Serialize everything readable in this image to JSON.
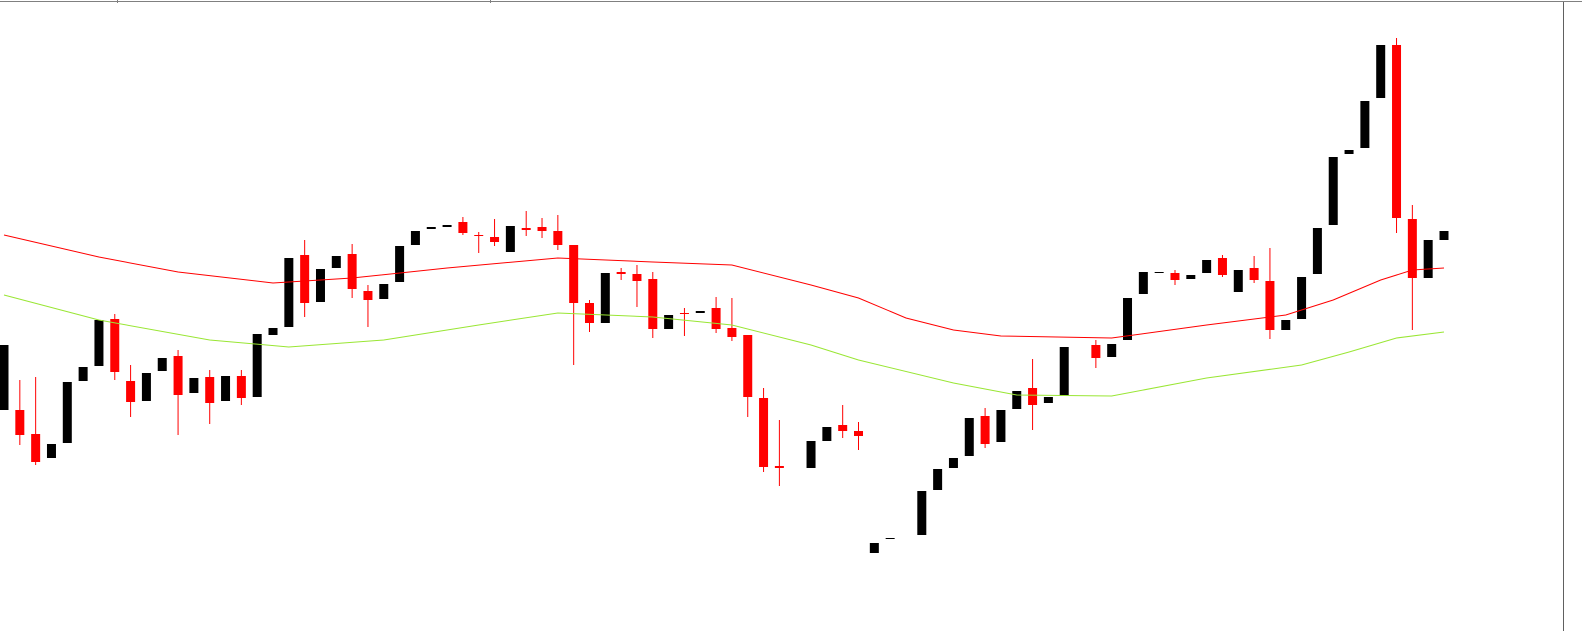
{
  "chart_data": {
    "type": "candlestick",
    "up_color": "#000000",
    "down_color": "#ff0000",
    "ylim": [
      0,
      631
    ],
    "categories": [
      null,
      null,
      null,
      null,
      null,
      null,
      null,
      null,
      null,
      null,
      null,
      null,
      null,
      null,
      null,
      null,
      null,
      null,
      null,
      null,
      null,
      null,
      null,
      null,
      null,
      null,
      null,
      null,
      null,
      null,
      null,
      null,
      null,
      null,
      null,
      null,
      null,
      null,
      null,
      null,
      null,
      null,
      null,
      null,
      null,
      null,
      null,
      null,
      null,
      null,
      null,
      null,
      null,
      null,
      null,
      null,
      null,
      null,
      null,
      null,
      null,
      null,
      null,
      null,
      null,
      null,
      null,
      null,
      null,
      null,
      null,
      null,
      null,
      null,
      null,
      null,
      null,
      null,
      null,
      null,
      null,
      null,
      null,
      null,
      null,
      null,
      null,
      null,
      null,
      null,
      null,
      null
    ],
    "open": [
      221,
      221,
      197,
      173,
      188,
      250,
      265,
      312,
      250,
      230,
      260,
      275,
      238,
      254,
      230,
      255,
      234,
      296,
      304,
      376,
      329,
      363,
      377,
      340,
      332,
      349,
      386,
      402,
      404,
      409,
      396,
      394,
      379,
      403,
      404,
      400,
      386,
      328,
      308,
      359,
      357,
      352,
      302,
      318,
      318,
      323,
      303,
      296,
      233,
      165,
      null,
      163,
      190,
      206,
      200,
      78,
      92,
      null,
      96,
      141,
      163,
      175,
      215,
      189,
      222,
      243,
      228,
      235,
      null,
      286,
      274,
      291,
      337,
      358,
      358,
      352,
      358,
      373,
      339,
      363,
      350,
      301,
      312,
      357,
      406,
      477,
      483,
      533,
      586,
      412,
      353,
      391
    ],
    "high": [
      286,
      251,
      254,
      187,
      249,
      264,
      311,
      317,
      266,
      258,
      273,
      281,
      253,
      261,
      255,
      261,
      297,
      303,
      373,
      391,
      362,
      375,
      387,
      346,
      347,
      385,
      400,
      404,
      406,
      414,
      399,
      412,
      405,
      420,
      413,
      416,
      386,
      331,
      358,
      363,
      366,
      359,
      316,
      323,
      320,
      334,
      333,
      296,
      243,
      211,
      null,
      190,
      204,
      226,
      209,
      88,
      93,
      null,
      140,
      162,
      173,
      213,
      223,
      221,
      240,
      272,
      234,
      284,
      null,
      291,
      287,
      333,
      359,
      359,
      361,
      356,
      371,
      376,
      361,
      375,
      383,
      311,
      354,
      403,
      474,
      481,
      530,
      586,
      593,
      426,
      391,
      400
    ],
    "low": [
      221,
      186,
      166,
      173,
      188,
      250,
      265,
      251,
      214,
      230,
      260,
      196,
      238,
      207,
      230,
      226,
      234,
      296,
      304,
      314,
      329,
      363,
      333,
      304,
      332,
      349,
      386,
      402,
      404,
      396,
      378,
      385,
      379,
      395,
      393,
      381,
      266,
      299,
      308,
      351,
      324,
      293,
      302,
      295,
      318,
      298,
      290,
      214,
      159,
      145,
      null,
      163,
      190,
      193,
      181,
      78,
      92,
      null,
      96,
      141,
      163,
      175,
      183,
      189,
      222,
      201,
      228,
      235,
      null,
      263,
      274,
      291,
      337,
      358,
      346,
      352,
      358,
      354,
      339,
      348,
      292,
      301,
      312,
      357,
      406,
      477,
      483,
      533,
      398,
      301,
      353,
      391
    ],
    "close": [
      286,
      196,
      169,
      187,
      249,
      264,
      311,
      259,
      229,
      258,
      273,
      236,
      253,
      228,
      255,
      233,
      297,
      303,
      373,
      328,
      362,
      375,
      342,
      331,
      347,
      385,
      400,
      404,
      406,
      398,
      395,
      389,
      405,
      401,
      400,
      386,
      328,
      308,
      358,
      357,
      350,
      302,
      316,
      317,
      320,
      302,
      294,
      234,
      164,
      163,
      null,
      190,
      204,
      200,
      195,
      88,
      93,
      null,
      140,
      162,
      173,
      213,
      187,
      221,
      240,
      226,
      234,
      284,
      null,
      273,
      287,
      333,
      359,
      359,
      351,
      356,
      371,
      356,
      361,
      351,
      301,
      311,
      354,
      403,
      474,
      481,
      530,
      586,
      413,
      353,
      391,
      400
    ],
    "lines": [
      {
        "color": "#ff0000",
        "x": [
          0,
          6,
          11,
          17,
          22,
          28,
          35,
          41,
          46,
          51,
          54,
          57,
          60,
          63,
          70,
          76,
          81,
          84,
          87,
          89,
          91
        ],
        "values": [
          396,
          374,
          359,
          348,
          353,
          363,
          373,
          369,
          366,
          346,
          333,
          313,
          301,
          295,
          293,
          306,
          316,
          331,
          351,
          361,
          363
        ]
      },
      {
        "color": "#99e633",
        "x": [
          0,
          6,
          13,
          18,
          24,
          30,
          35,
          41,
          46,
          51,
          54,
          60,
          64,
          70,
          76,
          82,
          85,
          88,
          91
        ],
        "values": [
          336,
          311,
          291,
          284,
          291,
          306,
          318,
          314,
          306,
          286,
          271,
          248,
          236,
          235,
          253,
          266,
          279,
          293,
          299
        ]
      }
    ]
  }
}
